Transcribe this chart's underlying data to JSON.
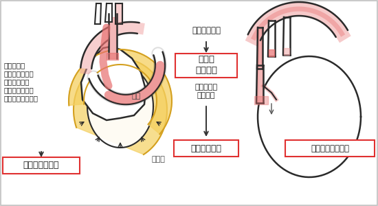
{
  "bg_color": "#ffffff",
  "border_color": "#c0c0c0",
  "box_border_color": "#e03030",
  "text_color": "#1a1a1a",
  "left_desc_lines": [
    "心のう腔に",
    "血液がたまり、",
    "心臓を圧迫し",
    "血圧が下がって",
    "危険な状態になる"
  ],
  "left_label_heart": "心臓",
  "left_label_peri": "心のう",
  "left_box_text": "心タンポナーデ",
  "middle_top_text": "脳の血行障害",
  "middle_box1_line1": "脳梗塞",
  "middle_box1_line2": "意識消失",
  "middle_mid_line1": "冠状動脈の",
  "middle_mid_line2": "血行障害",
  "middle_box2_text": "急性心筋梗塞",
  "right_box_text": "大動脈弁閉鎖不全",
  "yellow_fill": "#f5d060",
  "yellow_edge": "#d4a020",
  "red_fill": "#e87070",
  "red_edge": "#c03030",
  "pink_fill": "#f0a0a0",
  "dark_outline": "#2a2a2a",
  "gray_vessel": "#d8d8d0"
}
